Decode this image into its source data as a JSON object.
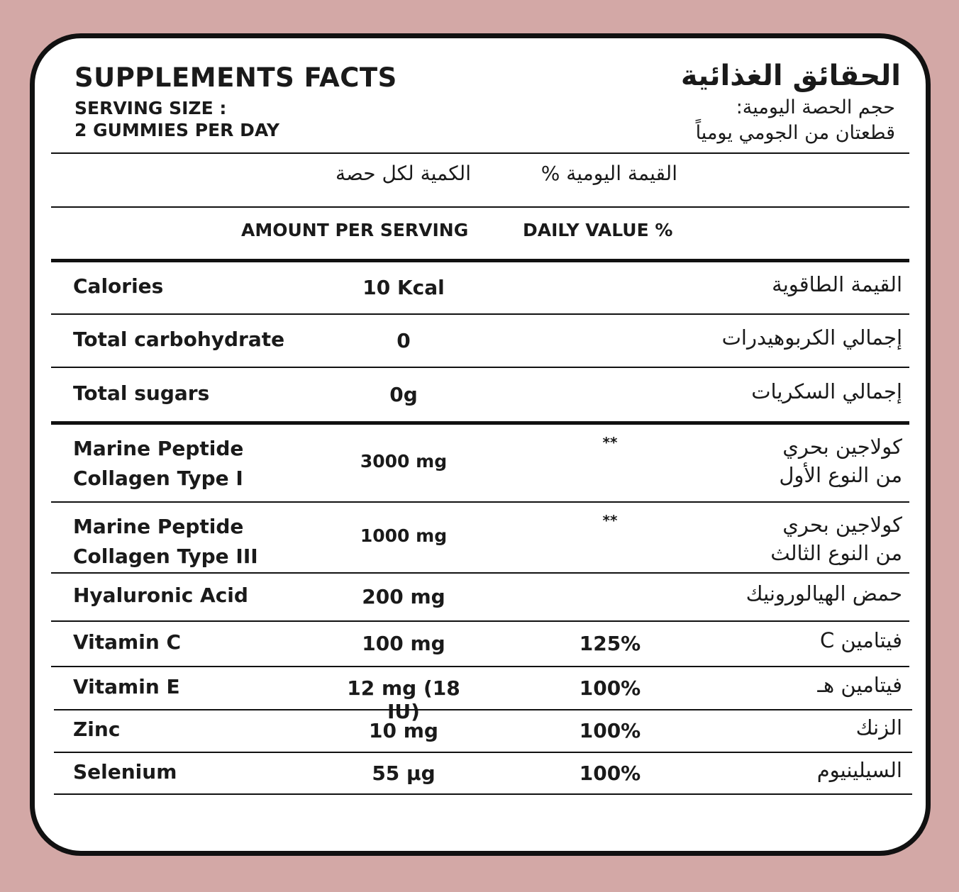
{
  "header": {
    "title": "SUPPLEMENTS FACTS",
    "serving_label": "SERVING SIZE :",
    "serving_value": "2 GUMMIES PER DAY",
    "ar_title": "الحقائق الغذائية",
    "ar_serving_label": "حجم الحصة اليومية:",
    "ar_serving_value": "قطعتان من الجومي يومياً"
  },
  "columns": {
    "ar_amount": "الكمية لكل حصة",
    "ar_daily_value": "القيمة اليومية %",
    "amount": "AMOUNT PER SERVING",
    "daily_value": "DAILY VALUE %"
  },
  "rows": [
    {
      "en": "Calories",
      "amount": "10 Kcal",
      "dv": "",
      "ar": "القيمة الطاقوية"
    },
    {
      "en": "Total carbohydrate",
      "amount": "0",
      "dv": "",
      "ar": "إجمالي الكربوهيدرات"
    },
    {
      "en": "Total sugars",
      "amount": "0g",
      "dv": "",
      "ar": "إجمالي السكريات"
    },
    {
      "en": "Marine Peptide",
      "en2": "Collagen Type I",
      "amount": "3000 mg",
      "dv": "**",
      "ar": "كولاجين بحري",
      "ar2": "من النوع الأول"
    },
    {
      "en": "Marine Peptide",
      "en2": "Collagen Type III",
      "amount": "1000 mg",
      "dv": "**",
      "ar": "كولاجين بحري",
      "ar2": "من النوع الثالث"
    },
    {
      "en": "Hyaluronic Acid",
      "amount": "200 mg",
      "dv": "",
      "ar": "حمض الهيالورونيك"
    },
    {
      "en": "Vitamin C",
      "amount": "100 mg",
      "dv": "125%",
      "ar": "فيتامين C"
    },
    {
      "en": "Vitamin E",
      "amount": "12 mg (18 IU)",
      "dv": "100%",
      "ar": "فيتامين هـ"
    },
    {
      "en": "Zinc",
      "amount": "10 mg",
      "dv": "100%",
      "ar": "الزنك"
    },
    {
      "en": "Selenium",
      "amount": "55 µg",
      "dv": "100%",
      "ar": "السيلينيوم"
    }
  ]
}
